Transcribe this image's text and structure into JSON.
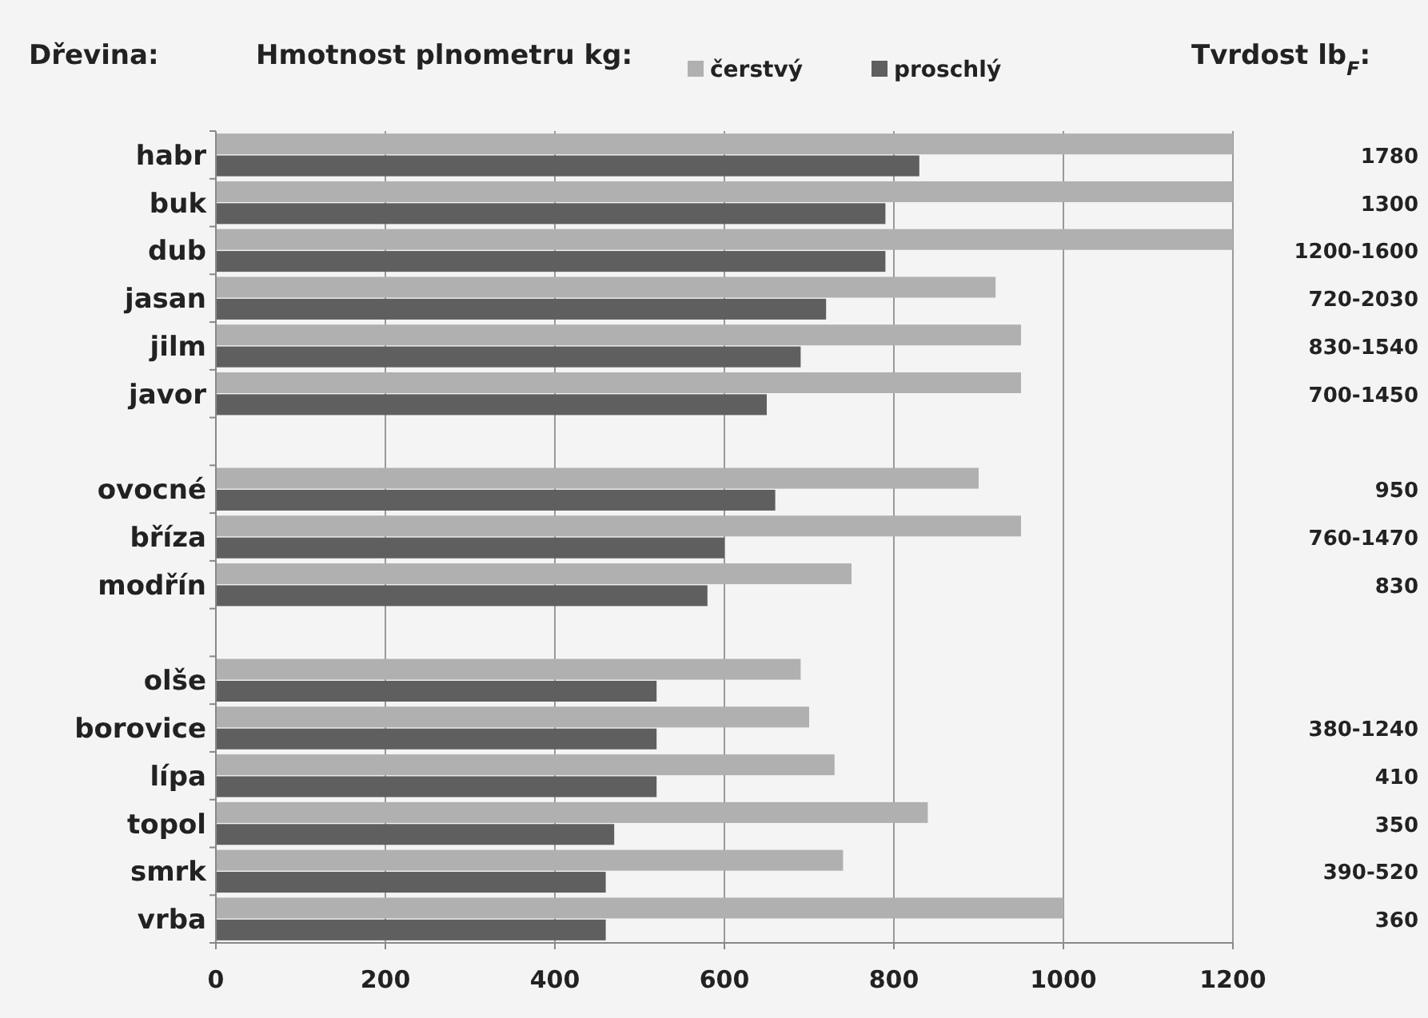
{
  "chart_data": {
    "type": "bar",
    "orientation": "horizontal",
    "title": "Hmotnost plnometru kg:",
    "ylabel": "Dřevina:",
    "y2label": "Tvrdost lb$_{F}$:",
    "categories": [
      "habr",
      "buk",
      "dub",
      "jasan",
      "jilm",
      "javor",
      null,
      "ovocné",
      "bříza",
      "modřín",
      null,
      "olše",
      "borovice",
      "lípa",
      "topol",
      "smrk",
      "vrba"
    ],
    "y2_categories": [
      "1780",
      "1300",
      "1200-1600",
      "720-2030",
      "830-1540",
      "700-1450",
      null,
      "950",
      "760-1470",
      "830",
      null,
      null,
      "380-1240",
      "410",
      "350",
      "390-520",
      "360"
    ],
    "series": [
      {
        "name": "čerstvý",
        "color": "#b0b0b0",
        "values": [
          1200,
          1200,
          1200,
          920,
          950,
          950,
          null,
          900,
          950,
          750,
          null,
          690,
          700,
          730,
          840,
          740,
          1000
        ]
      },
      {
        "name": "proschlý",
        "color": "#5f5f5f",
        "values": [
          830,
          790,
          790,
          720,
          690,
          650,
          null,
          660,
          600,
          580,
          null,
          520,
          520,
          520,
          470,
          460,
          460
        ]
      }
    ],
    "xlim": [
      0,
      1200
    ],
    "xticks": [
      0,
      200,
      400,
      600,
      800,
      1000,
      1200
    ],
    "grid": "x",
    "legend": "top"
  }
}
